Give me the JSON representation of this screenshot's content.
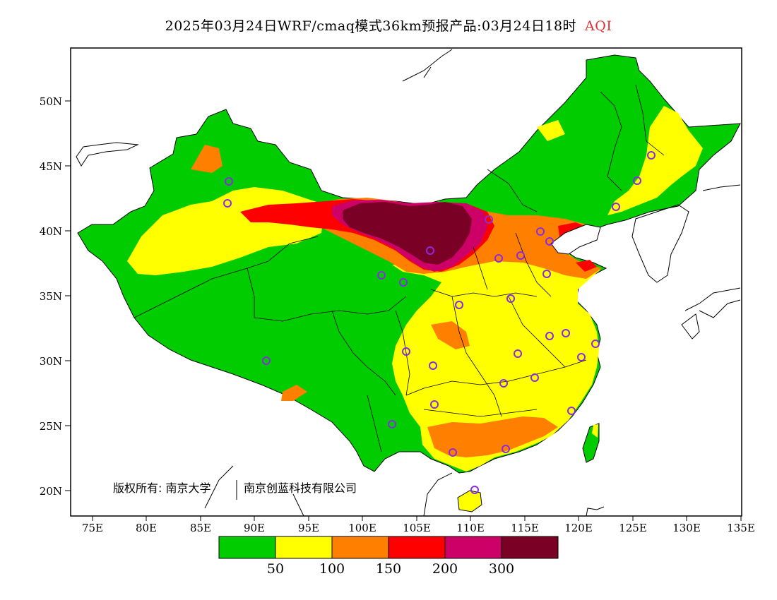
{
  "title": {
    "text": "2025年03月24日WRF/cmaq模式36km预报产品:03月24日18时",
    "product": "AQI",
    "product_color": "#e03030"
  },
  "map": {
    "lat_labels": [
      "50N",
      "45N",
      "40N",
      "35N",
      "30N",
      "25N",
      "20N"
    ],
    "lon_labels": [
      "75E",
      "80E",
      "85E",
      "90E",
      "95E",
      "100E",
      "105E",
      "110E",
      "115E",
      "120E",
      "125E",
      "130E",
      "135E"
    ],
    "copyright": "版权所有: 南京大学",
    "copyright_org": "南京创蓝科技有限公司",
    "station_marker_color": "#8a2be2"
  },
  "legend": {
    "colors": [
      "#00cc00",
      "#ffff00",
      "#ff7f00",
      "#ff0000",
      "#cc0066",
      "#7a0026"
    ],
    "labels": [
      "50",
      "100",
      "150",
      "200",
      "300"
    ]
  },
  "colors": {
    "good": "#00cc00",
    "moderate": "#ffff00",
    "sensitive": "#ff7f00",
    "unhealthy": "#ff0000",
    "very_unhealthy": "#cc0066",
    "hazardous": "#7a0026"
  }
}
